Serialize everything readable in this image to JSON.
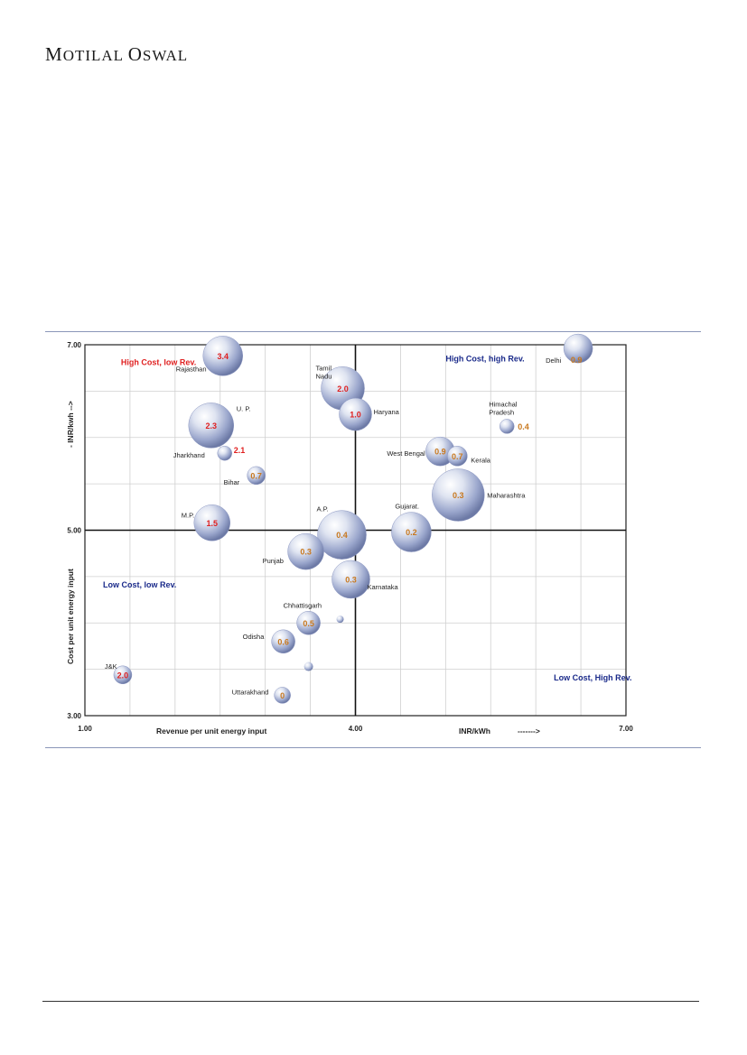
{
  "header": {
    "brand": "Motilal Oswal"
  },
  "chart_data": {
    "type": "scatter",
    "subtype": "bubble",
    "xlabel": "Revenue per unit energy input",
    "xunit_label": "INR/kWh",
    "xarrow": "------->",
    "ylabel": "Cost per unit energy input",
    "yunit_label": "- INR/kwh -->",
    "xlim": [
      1.0,
      7.0
    ],
    "ylim": [
      3.0,
      7.0
    ],
    "x_ticks": [
      "1.00",
      "4.00",
      "7.00"
    ],
    "y_ticks": [
      "3.00",
      "5.00",
      "7.00"
    ],
    "grid": true,
    "quadrant_lines": {
      "x": 4.0,
      "y": 5.0
    },
    "quadrant_labels": [
      {
        "text": "High Cost, low Rev.",
        "x": 1.4,
        "y": 6.78,
        "color": "#e02020"
      },
      {
        "text": "High Cost, high Rev.",
        "x": 5.0,
        "y": 6.82,
        "color": "#1a2a8a"
      },
      {
        "text": "Low Cost, low Rev.",
        "x": 1.2,
        "y": 4.38,
        "color": "#1a2a8a"
      },
      {
        "text": "Low Cost, High Rev.",
        "x": 6.2,
        "y": 3.38,
        "color": "#1a2a8a"
      }
    ],
    "bubble_color": "#a9b4d6",
    "points": [
      {
        "state": "Rajasthan",
        "x": 2.53,
        "y": 6.88,
        "value": "3.4",
        "r": 22,
        "vcolor": "#e02020"
      },
      {
        "state": "Tamil Nadu",
        "x": 3.86,
        "y": 6.53,
        "value": "2.0",
        "r": 24,
        "vcolor": "#e02020"
      },
      {
        "state": "Haryana",
        "x": 4.0,
        "y": 6.25,
        "value": "1.0",
        "r": 18,
        "vcolor": "#e02020"
      },
      {
        "state": "U. P.",
        "x": 2.4,
        "y": 6.13,
        "value": "2.3",
        "r": 25,
        "vcolor": "#e02020"
      },
      {
        "state": "Delhi",
        "x": 6.47,
        "y": 6.96,
        "value": "0.9",
        "r": 16,
        "vcolor": "#c8781e"
      },
      {
        "state": "Himachal Pradesh",
        "x": 5.68,
        "y": 6.12,
        "value": "0.4",
        "r": 8,
        "vcolor": "#c8781e"
      },
      {
        "state": "West Bengal",
        "x": 4.94,
        "y": 5.85,
        "value": "0.9",
        "r": 16,
        "vcolor": "#c8781e"
      },
      {
        "state": "Kerala",
        "x": 5.13,
        "y": 5.8,
        "value": "0.7",
        "r": 11,
        "vcolor": "#c8781e"
      },
      {
        "state": "Maharashtra",
        "x": 5.14,
        "y": 5.38,
        "value": "0.3",
        "r": 29,
        "vcolor": "#c8781e"
      },
      {
        "state": "Jharkhand",
        "x": 2.55,
        "y": 5.83,
        "value": "2.1",
        "r": 8,
        "vcolor": "#e02020",
        "label_dx": -58,
        "label_dy": 4,
        "value_dx": 16,
        "value_dy": -2
      },
      {
        "state": "Bihar",
        "x": 2.9,
        "y": 5.59,
        "value": "0.7",
        "r": 10,
        "vcolor": "#c8781e"
      },
      {
        "state": "M.P.",
        "x": 2.41,
        "y": 5.08,
        "value": "1.5",
        "r": 20,
        "vcolor": "#e02020"
      },
      {
        "state": "A.P.",
        "x": 3.85,
        "y": 4.95,
        "value": "0.4",
        "r": 27,
        "vcolor": "#c8781e"
      },
      {
        "state": "Gujarat.",
        "x": 4.62,
        "y": 4.98,
        "value": "0.2",
        "r": 22,
        "vcolor": "#c8781e"
      },
      {
        "state": "Punjab",
        "x": 3.45,
        "y": 4.77,
        "value": "0.3",
        "r": 20,
        "vcolor": "#c8781e"
      },
      {
        "state": "Karnataka",
        "x": 3.95,
        "y": 4.47,
        "value": "0.3",
        "r": 21,
        "vcolor": "#c8781e"
      },
      {
        "state": "Chhattisgarh",
        "x": 3.48,
        "y": 4.0,
        "value": "0.5",
        "r": 13,
        "vcolor": "#c8781e"
      },
      {
        "state": "Odisha",
        "x": 3.2,
        "y": 3.8,
        "value": "0.6",
        "r": 13,
        "vcolor": "#c8781e"
      },
      {
        "state": "J&K",
        "x": 1.42,
        "y": 3.44,
        "value": "2.0",
        "r": 10,
        "vcolor": "#e02020"
      },
      {
        "state": "Uttarakhand",
        "x": 3.19,
        "y": 3.22,
        "value": "0",
        "r": 9,
        "vcolor": "#c8781e"
      }
    ],
    "unlabeled_points": [
      {
        "x": 3.83,
        "y": 4.04,
        "r": 4
      },
      {
        "x": 3.48,
        "y": 3.53,
        "r": 5
      }
    ]
  }
}
